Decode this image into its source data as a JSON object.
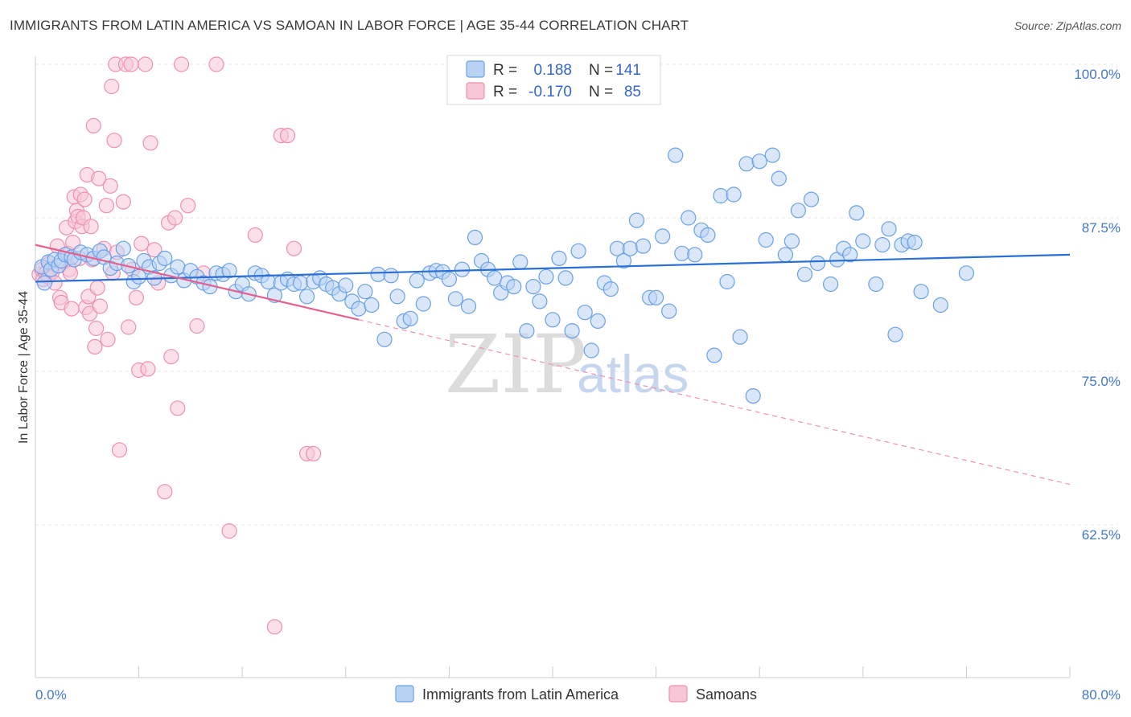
{
  "header": {
    "title": "IMMIGRANTS FROM LATIN AMERICA VS SAMOAN IN LABOR FORCE | AGE 35-44 CORRELATION CHART",
    "source": "Source: ZipAtlas.com"
  },
  "watermark": {
    "zip": "ZIP",
    "atlas": "atlas"
  },
  "legend": {
    "rows": [
      {
        "r_label": "R =",
        "r_value": "0.188",
        "n_label": "N =",
        "n_value": "141",
        "color": "#6aa0e8",
        "fill": "#b9d3f4"
      },
      {
        "r_label": "R =",
        "r_value": "-0.170",
        "n_label": "N =",
        "n_value": "85",
        "color": "#ef8fb0",
        "fill": "#f8c7d7"
      }
    ]
  },
  "bottom_legend": {
    "items": [
      {
        "label": "Immigrants from Latin America",
        "color": "#6aa0e8",
        "fill": "#b9d3f4"
      },
      {
        "label": "Samoans",
        "color": "#ef8fb0",
        "fill": "#f8c7d7"
      }
    ]
  },
  "chart_data": {
    "type": "scatter",
    "title": "IMMIGRANTS FROM LATIN AMERICA VS SAMOAN IN LABOR FORCE | AGE 35-44 CORRELATION CHART",
    "xlabel": "",
    "ylabel": "In Labor Force | Age 35-44",
    "xlim": [
      0,
      80
    ],
    "ylim": [
      50,
      100
    ],
    "x_tick_labels": [
      "0.0%",
      "80.0%"
    ],
    "y_ticks": [
      62.5,
      75.0,
      87.5,
      100.0
    ],
    "y_tick_labels": [
      "62.5%",
      "75.0%",
      "87.5%",
      "100.0%"
    ],
    "grid": true,
    "legend_position": "top-center",
    "series": [
      {
        "name": "Immigrants from Latin America",
        "color": "#6aa0e8",
        "fill": "#b9d3f4",
        "trend": {
          "x": [
            0,
            80
          ],
          "y": [
            82.3,
            84.5
          ]
        },
        "points": [
          [
            0.5,
            83.5
          ],
          [
            0.7,
            82.2
          ],
          [
            1.0,
            83.9
          ],
          [
            1.2,
            83.3
          ],
          [
            1.5,
            84.1
          ],
          [
            1.8,
            83.6
          ],
          [
            2.0,
            84.0
          ],
          [
            2.3,
            84.5
          ],
          [
            2.8,
            84.3
          ],
          [
            3.0,
            84.1
          ],
          [
            3.5,
            84.7
          ],
          [
            4.0,
            84.5
          ],
          [
            4.5,
            84.2
          ],
          [
            5.0,
            84.8
          ],
          [
            5.3,
            84.3
          ],
          [
            5.8,
            83.4
          ],
          [
            6.3,
            83.8
          ],
          [
            6.8,
            85.0
          ],
          [
            7.2,
            83.6
          ],
          [
            7.6,
            82.3
          ],
          [
            8.0,
            82.7
          ],
          [
            8.4,
            84.0
          ],
          [
            8.8,
            83.5
          ],
          [
            9.2,
            82.6
          ],
          [
            9.6,
            83.8
          ],
          [
            10.0,
            84.2
          ],
          [
            10.5,
            82.8
          ],
          [
            11.0,
            83.5
          ],
          [
            11.5,
            82.4
          ],
          [
            12.0,
            83.2
          ],
          [
            12.5,
            82.7
          ],
          [
            13.0,
            82.2
          ],
          [
            13.5,
            81.9
          ],
          [
            14.0,
            83.0
          ],
          [
            14.5,
            82.9
          ],
          [
            15.0,
            83.2
          ],
          [
            15.5,
            81.5
          ],
          [
            16.0,
            82.1
          ],
          [
            16.5,
            81.3
          ],
          [
            17.0,
            83.0
          ],
          [
            17.5,
            82.8
          ],
          [
            18.0,
            82.3
          ],
          [
            18.5,
            81.2
          ],
          [
            19.0,
            82.2
          ],
          [
            19.5,
            82.5
          ],
          [
            20.0,
            82.1
          ],
          [
            20.5,
            82.2
          ],
          [
            21.0,
            81.1
          ],
          [
            21.5,
            82.3
          ],
          [
            22.0,
            82.6
          ],
          [
            22.5,
            82.1
          ],
          [
            23.0,
            81.8
          ],
          [
            23.5,
            81.3
          ],
          [
            24.0,
            82.0
          ],
          [
            24.5,
            80.7
          ],
          [
            25.0,
            80.1
          ],
          [
            25.5,
            81.5
          ],
          [
            26.0,
            80.4
          ],
          [
            26.5,
            82.9
          ],
          [
            27.0,
            77.6
          ],
          [
            27.5,
            82.8
          ],
          [
            28.0,
            81.1
          ],
          [
            28.5,
            79.1
          ],
          [
            29.0,
            79.3
          ],
          [
            29.5,
            82.4
          ],
          [
            30.0,
            80.5
          ],
          [
            30.5,
            83.0
          ],
          [
            31.0,
            83.2
          ],
          [
            31.5,
            83.1
          ],
          [
            32.0,
            82.5
          ],
          [
            32.5,
            80.9
          ],
          [
            33.0,
            83.3
          ],
          [
            33.5,
            80.3
          ],
          [
            34.0,
            85.9
          ],
          [
            34.5,
            84.0
          ],
          [
            35.0,
            83.3
          ],
          [
            35.5,
            82.6
          ],
          [
            36.0,
            81.4
          ],
          [
            36.5,
            82.2
          ],
          [
            37.0,
            81.9
          ],
          [
            37.5,
            83.9
          ],
          [
            38.0,
            78.3
          ],
          [
            38.5,
            81.9
          ],
          [
            39.0,
            80.7
          ],
          [
            39.5,
            82.7
          ],
          [
            40.0,
            79.2
          ],
          [
            40.5,
            84.2
          ],
          [
            41.0,
            82.6
          ],
          [
            41.5,
            78.3
          ],
          [
            42.0,
            84.8
          ],
          [
            42.5,
            79.8
          ],
          [
            43.0,
            76.7
          ],
          [
            43.5,
            79.1
          ],
          [
            44.0,
            82.2
          ],
          [
            44.5,
            81.7
          ],
          [
            45.0,
            85.0
          ],
          [
            45.5,
            84.0
          ],
          [
            46.0,
            85.0
          ],
          [
            46.5,
            87.3
          ],
          [
            47.0,
            85.2
          ],
          [
            47.5,
            81.0
          ],
          [
            48.0,
            81.0
          ],
          [
            48.5,
            86.0
          ],
          [
            49.0,
            79.9
          ],
          [
            49.5,
            92.6
          ],
          [
            50.0,
            84.6
          ],
          [
            50.5,
            87.5
          ],
          [
            51.0,
            84.5
          ],
          [
            51.5,
            86.5
          ],
          [
            52.0,
            86.1
          ],
          [
            52.5,
            76.3
          ],
          [
            53.0,
            89.3
          ],
          [
            53.5,
            82.3
          ],
          [
            54.0,
            89.4
          ],
          [
            54.5,
            77.8
          ],
          [
            55.0,
            91.9
          ],
          [
            55.5,
            73.0
          ],
          [
            56.0,
            92.1
          ],
          [
            56.5,
            85.7
          ],
          [
            57.0,
            92.6
          ],
          [
            57.5,
            90.7
          ],
          [
            58.0,
            84.5
          ],
          [
            58.5,
            85.6
          ],
          [
            59.0,
            88.1
          ],
          [
            59.5,
            82.9
          ],
          [
            60.0,
            89.0
          ],
          [
            60.5,
            83.8
          ],
          [
            61.5,
            82.1
          ],
          [
            62.0,
            84.1
          ],
          [
            62.5,
            85.0
          ],
          [
            63.0,
            84.5
          ],
          [
            63.5,
            87.9
          ],
          [
            64.0,
            85.6
          ],
          [
            65.0,
            82.1
          ],
          [
            65.5,
            85.3
          ],
          [
            66.0,
            86.6
          ],
          [
            66.5,
            78.0
          ],
          [
            67.0,
            85.3
          ],
          [
            67.5,
            85.6
          ],
          [
            68.0,
            85.5
          ],
          [
            68.5,
            81.5
          ],
          [
            70.0,
            80.4
          ],
          [
            72.0,
            83.0
          ]
        ]
      },
      {
        "name": "Samoans",
        "color": "#ef8fb0",
        "fill": "#f8c7d7",
        "trend": {
          "x": [
            0,
            80
          ],
          "y": [
            85.3,
            65.8
          ],
          "solid_until_x": 25
        },
        "points": [
          [
            0.3,
            82.9
          ],
          [
            0.5,
            83.3
          ],
          [
            0.6,
            82.5
          ],
          [
            0.8,
            83.0
          ],
          [
            1.0,
            82.7
          ],
          [
            1.1,
            83.8
          ],
          [
            1.3,
            83.1
          ],
          [
            1.5,
            82.2
          ],
          [
            1.7,
            85.2
          ],
          [
            1.9,
            81.0
          ],
          [
            2.0,
            80.6
          ],
          [
            2.2,
            83.9
          ],
          [
            2.4,
            86.7
          ],
          [
            2.5,
            84.6
          ],
          [
            2.6,
            83.3
          ],
          [
            2.7,
            83.0
          ],
          [
            2.8,
            80.1
          ],
          [
            2.9,
            85.5
          ],
          [
            3.0,
            89.2
          ],
          [
            3.1,
            87.2
          ],
          [
            3.2,
            88.1
          ],
          [
            3.3,
            87.6
          ],
          [
            3.4,
            84.2
          ],
          [
            3.5,
            89.4
          ],
          [
            3.6,
            86.8
          ],
          [
            3.7,
            87.5
          ],
          [
            3.8,
            89.0
          ],
          [
            3.9,
            80.2
          ],
          [
            4.0,
            91.0
          ],
          [
            4.1,
            81.1
          ],
          [
            4.2,
            79.7
          ],
          [
            4.3,
            86.8
          ],
          [
            4.4,
            84.1
          ],
          [
            4.5,
            95.0
          ],
          [
            4.6,
            77.0
          ],
          [
            4.7,
            78.5
          ],
          [
            4.8,
            81.8
          ],
          [
            4.9,
            90.7
          ],
          [
            5.0,
            80.3
          ],
          [
            5.3,
            85.0
          ],
          [
            5.5,
            88.5
          ],
          [
            5.6,
            77.6
          ],
          [
            5.8,
            90.1
          ],
          [
            5.9,
            98.2
          ],
          [
            6.0,
            83.0
          ],
          [
            6.1,
            93.8
          ],
          [
            6.2,
            100.0
          ],
          [
            6.3,
            84.7
          ],
          [
            6.5,
            68.6
          ],
          [
            6.8,
            88.8
          ],
          [
            7.0,
            100.0
          ],
          [
            7.2,
            78.6
          ],
          [
            7.4,
            100.0
          ],
          [
            7.5,
            83.3
          ],
          [
            7.8,
            81.0
          ],
          [
            8.0,
            75.1
          ],
          [
            8.2,
            85.4
          ],
          [
            8.5,
            100.0
          ],
          [
            8.7,
            75.2
          ],
          [
            8.9,
            93.6
          ],
          [
            9.2,
            84.9
          ],
          [
            9.5,
            82.2
          ],
          [
            10.0,
            65.2
          ],
          [
            10.3,
            87.1
          ],
          [
            10.5,
            76.2
          ],
          [
            10.8,
            87.5
          ],
          [
            11.0,
            72.0
          ],
          [
            11.3,
            100.0
          ],
          [
            11.8,
            88.5
          ],
          [
            12.5,
            78.7
          ],
          [
            13.0,
            83.0
          ],
          [
            14.0,
            100.0
          ],
          [
            15.0,
            62.0
          ],
          [
            17.0,
            86.1
          ],
          [
            18.5,
            54.2
          ],
          [
            19.0,
            94.2
          ],
          [
            19.5,
            94.2
          ],
          [
            20.0,
            85.0
          ],
          [
            21.0,
            68.3
          ],
          [
            21.5,
            68.3
          ]
        ]
      }
    ]
  }
}
